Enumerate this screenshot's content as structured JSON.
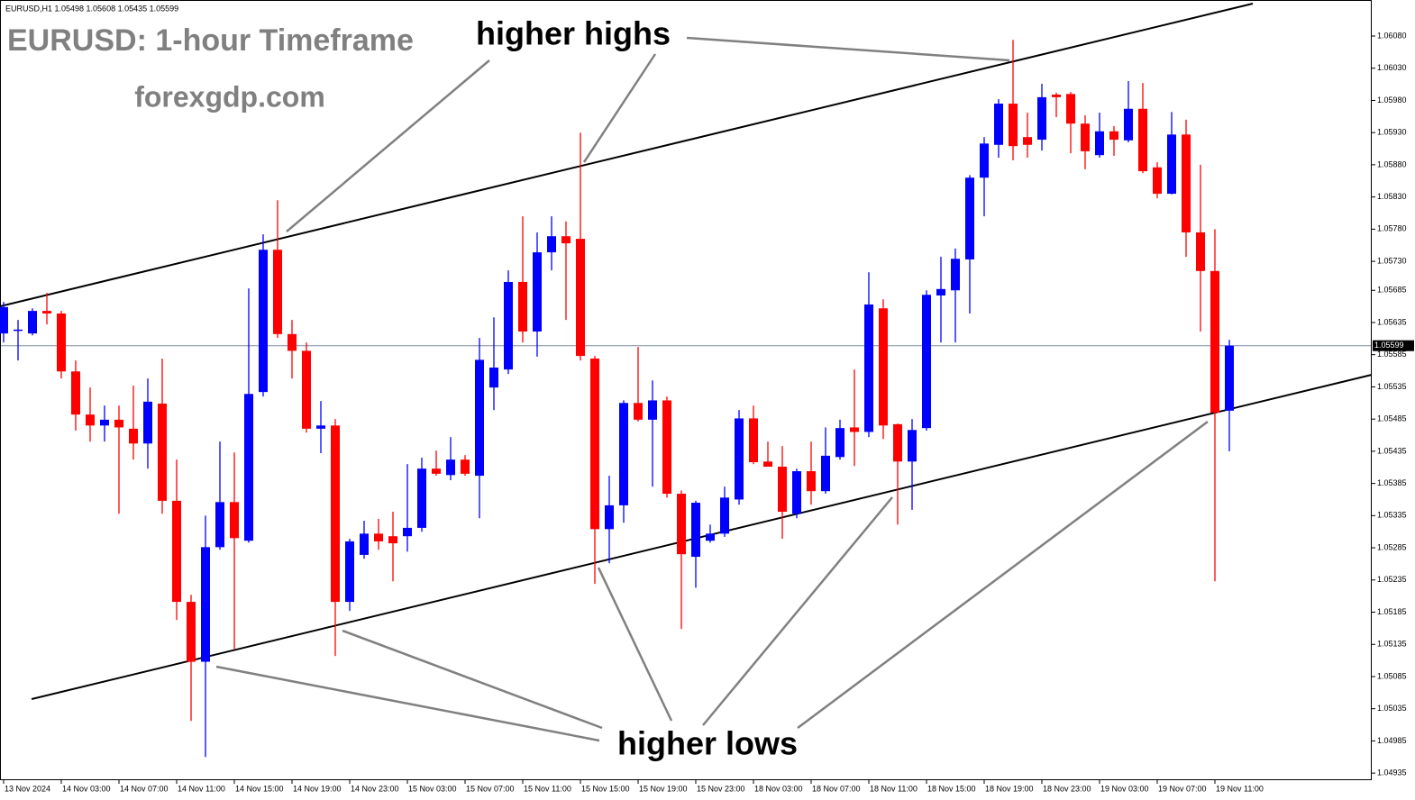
{
  "chart_data": {
    "type": "candlestick",
    "header": "EURUSD,H1  1.05498 1.05608 1.05435 1.05599",
    "title": "EURUSD: 1-hour Timeframe",
    "subtitle": "forexgdp.com",
    "annotations": [
      "higher highs",
      "higher lows"
    ],
    "up_color": "#0000ff",
    "down_color": "#ff0000",
    "current_price": 1.05599,
    "ylim": [
      1.04924,
      1.06136
    ],
    "yticks": [
      {
        "value": 1.0608,
        "label": "1.06080"
      },
      {
        "value": 1.0603,
        "label": "1.06030"
      },
      {
        "value": 1.0598,
        "label": "1.05980"
      },
      {
        "value": 1.0593,
        "label": "1.05930"
      },
      {
        "value": 1.0588,
        "label": "1.05880"
      },
      {
        "value": 1.0583,
        "label": "1.05830"
      },
      {
        "value": 1.0578,
        "label": "1.05780"
      },
      {
        "value": 1.0573,
        "label": "1.05730"
      },
      1.05685,
      1.05635,
      1.05585,
      1.05535,
      1.05485,
      1.05435,
      1.05385,
      1.05335,
      1.05285,
      1.05235,
      1.05185,
      1.05135,
      1.05085,
      1.05035,
      1.04985,
      1.04935
    ],
    "categories": [
      "13 Nov 2024",
      null,
      null,
      null,
      "14 Nov 03:00",
      null,
      null,
      null,
      "14 Nov 07:00",
      null,
      null,
      null,
      "14 Nov 11:00",
      null,
      null,
      null,
      "14 Nov 15:00",
      null,
      null,
      null,
      "14 Nov 19:00",
      null,
      null,
      null,
      "14 Nov 23:00",
      null,
      null,
      null,
      "15 Nov 03:00",
      null,
      null,
      null,
      "15 Nov 07:00",
      null,
      null,
      null,
      "15 Nov 11:00",
      null,
      null,
      null,
      "15 Nov 15:00",
      null,
      null,
      null,
      "15 Nov 19:00",
      null,
      null,
      null,
      "15 Nov 23:00",
      null,
      null,
      null,
      "18 Nov 03:00",
      null,
      null,
      null,
      "18 Nov 07:00",
      null,
      null,
      null,
      "18 Nov 11:00",
      null,
      null,
      null,
      "18 Nov 15:00",
      null,
      null,
      null,
      "18 Nov 19:00",
      null,
      null,
      null,
      "18 Nov 23:00",
      null,
      null,
      null,
      "19 Nov 03:00",
      null,
      null,
      null,
      "19 Nov 07:00",
      null,
      null,
      null,
      "19 Nov 11:00",
      null
    ],
    "open": [
      1.05618,
      1.05622,
      1.05618,
      1.05653,
      1.05649,
      1.05559,
      1.05492,
      1.05475,
      1.05484,
      1.0547,
      1.05447,
      1.05509,
      1.05358,
      1.05201,
      1.05108,
      1.05286,
      1.05356,
      1.05296,
      1.05527,
      1.05748,
      1.05617,
      1.05591,
      1.0547,
      1.05475,
      1.05201,
      1.05274,
      1.05307,
      1.05303,
      1.05303,
      1.05316,
      1.05408,
      1.05398,
      1.05422,
      1.05397,
      1.05534,
      1.05562,
      1.05698,
      1.05621,
      1.05744,
      1.05769,
      1.05765,
      1.05579,
      1.05314,
      1.05351,
      1.0551,
      1.05484,
      1.05514,
      1.05369,
      1.05271,
      1.05296,
      1.05307,
      1.0536,
      1.05486,
      1.05419,
      1.05411,
      1.05338,
      1.05404,
      1.05373,
      1.05426,
      1.05472,
      1.05465,
      1.05657,
      1.05477,
      1.05419,
      1.05471,
      1.05677,
      1.05685,
      1.05733,
      1.0586,
      1.05911,
      1.05975,
      1.05923,
      1.05919,
      1.05989,
      1.0599,
      1.05944,
      1.05895,
      1.05932,
      1.05918,
      1.05967,
      1.05876,
      1.05835,
      1.05927,
      1.05775,
      1.05715,
      1.05498
    ],
    "high": [
      1.05667,
      1.05639,
      1.05657,
      1.05681,
      1.05653,
      1.05576,
      1.05534,
      1.05506,
      1.05506,
      1.05537,
      1.05548,
      1.05579,
      1.05422,
      1.05212,
      1.05335,
      1.0545,
      1.05433,
      1.05688,
      1.05772,
      1.05825,
      1.05639,
      1.05604,
      1.05513,
      1.05485,
      1.05299,
      1.05327,
      1.0533,
      1.05341,
      1.05415,
      1.05425,
      1.05436,
      1.05457,
      1.05429,
      1.05611,
      1.05643,
      1.05716,
      1.058,
      1.05775,
      1.058,
      1.05792,
      1.0593,
      1.05583,
      1.05397,
      1.05514,
      1.05597,
      1.05545,
      1.0552,
      1.05374,
      1.05358,
      1.05321,
      1.0538,
      1.05499,
      1.05506,
      1.0545,
      1.05443,
      1.05408,
      1.0545,
      1.05472,
      1.05484,
      1.05562,
      1.05713,
      1.05671,
      1.05478,
      1.05485,
      1.05685,
      1.05737,
      1.0575,
      1.05864,
      1.05923,
      1.05982,
      1.06074,
      1.05961,
      1.06006,
      1.05992,
      1.05993,
      1.05957,
      1.05961,
      1.0594,
      1.0601,
      1.06007,
      1.05884,
      1.05962,
      1.0595,
      1.0588,
      1.0578,
      1.05608
    ],
    "low": [
      1.05604,
      1.05576,
      1.05615,
      1.05632,
      1.05548,
      1.05467,
      1.0545,
      1.0545,
      1.05338,
      1.05422,
      1.05408,
      1.05338,
      1.05173,
      1.05016,
      1.0496,
      1.05282,
      1.05128,
      1.05293,
      1.0552,
      1.05611,
      1.05548,
      1.05464,
      1.05432,
      1.05117,
      1.05187,
      1.05268,
      1.05282,
      1.05233,
      1.05279,
      1.0531,
      1.05397,
      1.0539,
      1.05397,
      1.05331,
      1.05499,
      1.05555,
      1.05604,
      1.05582,
      1.05716,
      1.05639,
      1.05576,
      1.05229,
      1.05261,
      1.05324,
      1.05481,
      1.0538,
      1.05363,
      1.05159,
      1.05223,
      1.05293,
      1.05302,
      1.05352,
      1.05415,
      1.05411,
      1.05299,
      1.05331,
      1.05352,
      1.05369,
      1.05422,
      1.05412,
      1.05457,
      1.05454,
      1.05321,
      1.05344,
      1.05467,
      1.05604,
      1.05604,
      1.05649,
      1.058,
      1.05891,
      1.05887,
      1.05891,
      1.05902,
      1.05954,
      1.05898,
      1.05873,
      1.05891,
      1.05894,
      1.05915,
      1.05867,
      1.05828,
      1.05834,
      1.05737,
      1.05621,
      1.05233,
      1.05435
    ],
    "close": [
      1.05659,
      1.05624,
      1.05653,
      1.05649,
      1.05559,
      1.05492,
      1.05475,
      1.05484,
      1.05472,
      1.05447,
      1.05512,
      1.05358,
      1.05201,
      1.05108,
      1.05286,
      1.05356,
      1.053,
      1.05524,
      1.05748,
      1.05617,
      1.05591,
      1.0547,
      1.05475,
      1.05201,
      1.05295,
      1.05307,
      1.05295,
      1.05292,
      1.05316,
      1.05408,
      1.054,
      1.05422,
      1.054,
      1.05577,
      1.05565,
      1.05698,
      1.05621,
      1.05744,
      1.05769,
      1.05758,
      1.05583,
      1.05314,
      1.05351,
      1.0551,
      1.05484,
      1.05514,
      1.05369,
      1.05275,
      1.05355,
      1.05307,
      1.05363,
      1.05486,
      1.05418,
      1.05411,
      1.05341,
      1.05404,
      1.05373,
      1.05428,
      1.05471,
      1.05465,
      1.05663,
      1.05475,
      1.05419,
      1.05468,
      1.05678,
      1.05687,
      1.05734,
      1.0586,
      1.05913,
      1.05975,
      1.05909,
      1.05911,
      1.05985,
      1.05985,
      1.05944,
      1.05901,
      1.05932,
      1.05919,
      1.05967,
      1.0587,
      1.05835,
      1.05927,
      1.05775,
      1.05715,
      1.05495,
      1.05599
    ]
  }
}
